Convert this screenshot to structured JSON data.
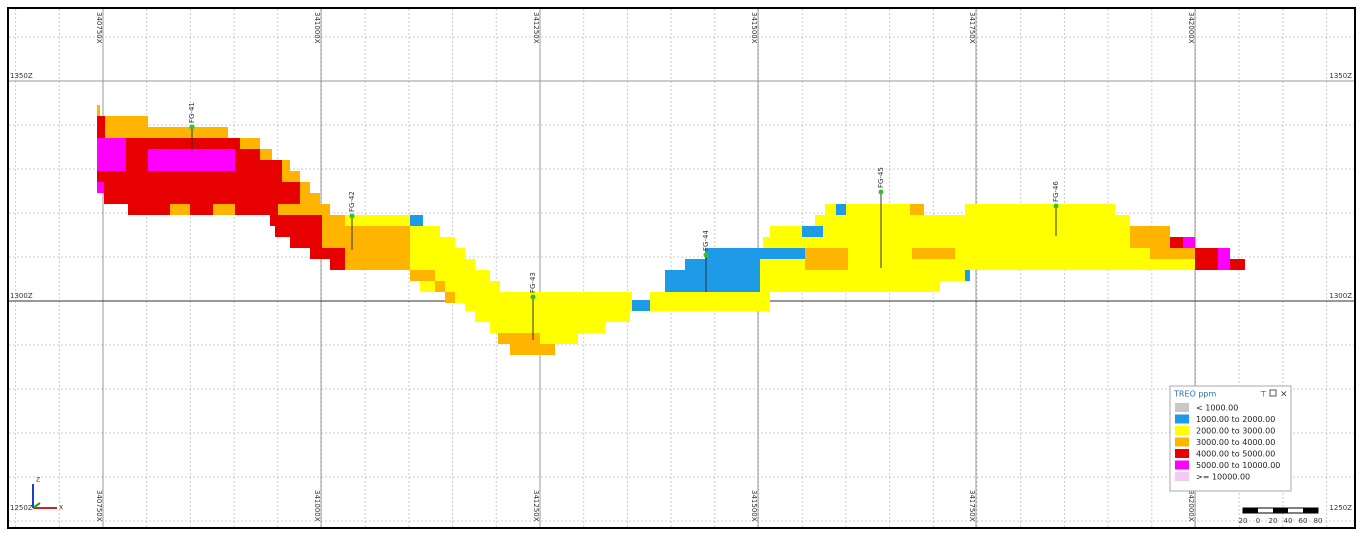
{
  "x_labels": [
    "340750X",
    "341000X",
    "341250X",
    "341500X",
    "341750X",
    "342000X"
  ],
  "z_labels": [
    "1350Z",
    "1300Z",
    "1250Z"
  ],
  "drillholes": [
    "FG-41",
    "FG-42",
    "FG-43",
    "FG-44",
    "FG-45",
    "FG-46"
  ],
  "legend": {
    "title": "TREO ppm",
    "entries": [
      "< 1000.00",
      "1000.00 to 2000.00",
      "2000.00 to 3000.00",
      "3000.00 to 4000.00",
      "4000.00 to 5000.00",
      "5000.00 to 10000.00",
      ">= 10000.00"
    ]
  },
  "scale_bar": {
    "labels": [
      20,
      0,
      20,
      40,
      60,
      80
    ]
  },
  "triad": [
    "Z",
    "X"
  ]
}
